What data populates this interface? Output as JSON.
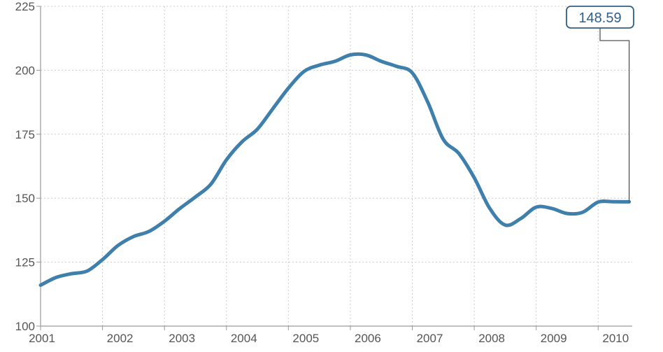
{
  "chart_data": {
    "type": "line",
    "title": "",
    "xlabel": "",
    "ylabel": "",
    "xlim": [
      2001.0,
      2010.55
    ],
    "ylim": [
      100,
      225
    ],
    "x_ticks": [
      2001,
      2002,
      2003,
      2004,
      2005,
      2006,
      2007,
      2008,
      2009,
      2010
    ],
    "y_ticks": [
      100,
      125,
      150,
      175,
      200,
      225
    ],
    "grid": true,
    "colors": {
      "line": "#3f7fab",
      "grid": "#cccccc",
      "axis": "#999999",
      "callout_border": "#2f5f87"
    },
    "series": [
      {
        "x": [
          2001.0,
          2001.25,
          2001.5,
          2001.75,
          2002.0,
          2002.25,
          2002.5,
          2002.75,
          2003.0,
          2003.25,
          2003.5,
          2003.75,
          2004.0,
          2004.25,
          2004.5,
          2004.75,
          2005.0,
          2005.25,
          2005.5,
          2005.75,
          2006.0,
          2006.25,
          2006.5,
          2006.75,
          2007.0,
          2007.25,
          2007.5,
          2007.75,
          2008.0,
          2008.25,
          2008.5,
          2008.75,
          2009.0,
          2009.25,
          2009.5,
          2009.75,
          2010.0,
          2010.25,
          2010.5
        ],
        "values": [
          116,
          119,
          120.5,
          121.5,
          126,
          131.5,
          135,
          137,
          141,
          146,
          150.5,
          155.5,
          165,
          172,
          177,
          185,
          193,
          199.5,
          202,
          203.5,
          206,
          206,
          203.5,
          201.5,
          199,
          187.5,
          173,
          167.5,
          158,
          146,
          139.5,
          142,
          146.5,
          146,
          144,
          144.5,
          148.5,
          148.6,
          148.59
        ]
      }
    ],
    "annotation": {
      "label": "148.59",
      "x": 2010.5,
      "y": 148.59
    }
  }
}
